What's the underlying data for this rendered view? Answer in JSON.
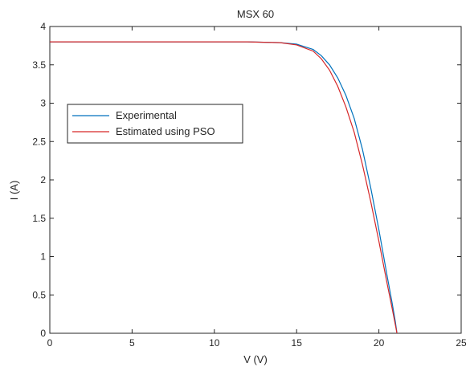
{
  "chart_data": {
    "type": "line",
    "title": "MSX 60",
    "xlabel": "V (V)",
    "ylabel": "I (A)",
    "xlim": [
      0,
      25
    ],
    "ylim": [
      0,
      4
    ],
    "xticks": [
      0,
      5,
      10,
      15,
      20,
      25
    ],
    "yticks": [
      0,
      0.5,
      1,
      1.5,
      2,
      2.5,
      3,
      3.5,
      4
    ],
    "grid": false,
    "legend_position": "left-middle",
    "series": [
      {
        "name": "Experimental",
        "color": "#0072bd",
        "x": [
          0,
          5,
          10,
          12,
          14,
          15,
          16,
          16.5,
          17,
          17.5,
          18,
          18.5,
          19,
          19.5,
          20,
          20.5,
          20.8,
          21.0,
          21.1
        ],
        "y": [
          3.8,
          3.8,
          3.8,
          3.8,
          3.79,
          3.77,
          3.7,
          3.62,
          3.5,
          3.33,
          3.1,
          2.8,
          2.4,
          1.9,
          1.35,
          0.75,
          0.4,
          0.15,
          0.0
        ]
      },
      {
        "name": "Estimated using PSO",
        "color": "#d62728",
        "x": [
          0,
          5,
          10,
          12,
          14,
          15,
          16,
          16.5,
          17,
          17.5,
          18,
          18.5,
          19,
          19.5,
          20,
          20.5,
          20.8,
          21.0,
          21.1
        ],
        "y": [
          3.8,
          3.8,
          3.8,
          3.8,
          3.79,
          3.76,
          3.68,
          3.58,
          3.43,
          3.22,
          2.95,
          2.62,
          2.2,
          1.72,
          1.2,
          0.65,
          0.33,
          0.11,
          0.0
        ]
      }
    ]
  }
}
